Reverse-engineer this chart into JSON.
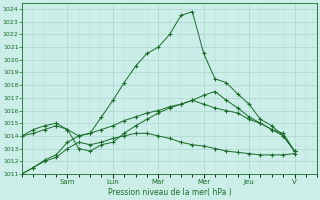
{
  "xlabel": "Pression niveau de la mer( hPa )",
  "bg_color": "#cceee8",
  "grid_color_major": "#aad4cc",
  "grid_color_minor": "#bbddd8",
  "line_color": "#1a6b2a",
  "ylim": [
    1011,
    1024.5
  ],
  "ytick_min": 1011,
  "ytick_max": 1024,
  "x_day_labels": [
    "Sam",
    "Lun",
    "Mar",
    "Mer",
    "Jeu",
    "V"
  ],
  "x_day_positions": [
    2,
    4,
    6,
    8,
    10,
    12
  ],
  "x_minor_step": 0.5,
  "xlim": [
    0,
    13
  ],
  "series": [
    {
      "x": [
        0.0,
        0.5,
        1.0,
        1.5,
        2.0,
        2.5,
        3.0,
        3.5,
        4.0,
        4.5,
        5.0,
        5.5,
        6.0,
        6.5,
        7.0,
        7.5,
        8.0,
        8.5,
        9.0,
        9.5,
        10.0,
        10.5,
        11.0,
        11.5,
        12.0
      ],
      "y": [
        1011.0,
        1011.5,
        1012.1,
        1012.5,
        1013.5,
        1014.0,
        1014.2,
        1015.5,
        1016.8,
        1018.2,
        1019.5,
        1020.5,
        1021.0,
        1022.0,
        1023.5,
        1023.8,
        1020.5,
        1018.5,
        1018.2,
        1017.3,
        1016.5,
        1015.3,
        1014.8,
        1014.0,
        1012.8
      ]
    },
    {
      "x": [
        0.0,
        0.5,
        1.0,
        1.5,
        2.0,
        2.5,
        3.0,
        3.5,
        4.0,
        4.5,
        5.0,
        5.5,
        6.0,
        6.5,
        7.0,
        7.5,
        8.0,
        8.5,
        9.0,
        9.5,
        10.0,
        10.5,
        11.0,
        11.5,
        12.0
      ],
      "y": [
        1014.0,
        1014.5,
        1014.8,
        1015.0,
        1014.5,
        1013.0,
        1012.8,
        1013.3,
        1013.5,
        1014.2,
        1014.8,
        1015.3,
        1015.8,
        1016.2,
        1016.5,
        1016.8,
        1017.2,
        1017.5,
        1016.8,
        1016.2,
        1015.5,
        1015.0,
        1014.5,
        1014.0,
        1012.8
      ]
    },
    {
      "x": [
        0.0,
        0.5,
        1.0,
        1.5,
        2.0,
        2.5,
        3.0,
        3.5,
        4.0,
        4.5,
        5.0,
        5.5,
        6.0,
        6.5,
        7.0,
        7.5,
        8.0,
        8.5,
        9.0,
        9.5,
        10.0,
        10.5,
        11.0,
        11.5,
        12.0
      ],
      "y": [
        1014.0,
        1014.2,
        1014.5,
        1014.8,
        1014.5,
        1014.0,
        1014.2,
        1014.5,
        1014.8,
        1015.2,
        1015.5,
        1015.8,
        1016.0,
        1016.3,
        1016.5,
        1016.8,
        1016.5,
        1016.2,
        1016.0,
        1015.8,
        1015.3,
        1015.0,
        1014.5,
        1014.2,
        1012.8
      ]
    },
    {
      "x": [
        0.0,
        0.5,
        1.0,
        1.5,
        2.0,
        2.5,
        3.0,
        3.5,
        4.0,
        4.5,
        5.0,
        5.5,
        6.0,
        6.5,
        7.0,
        7.5,
        8.0,
        8.5,
        9.0,
        9.5,
        10.0,
        10.5,
        11.0,
        11.5,
        12.0
      ],
      "y": [
        1011.0,
        1011.5,
        1012.0,
        1012.3,
        1013.0,
        1013.5,
        1013.3,
        1013.5,
        1013.8,
        1014.0,
        1014.2,
        1014.2,
        1014.0,
        1013.8,
        1013.5,
        1013.3,
        1013.2,
        1013.0,
        1012.8,
        1012.7,
        1012.6,
        1012.5,
        1012.5,
        1012.5,
        1012.6
      ]
    }
  ]
}
